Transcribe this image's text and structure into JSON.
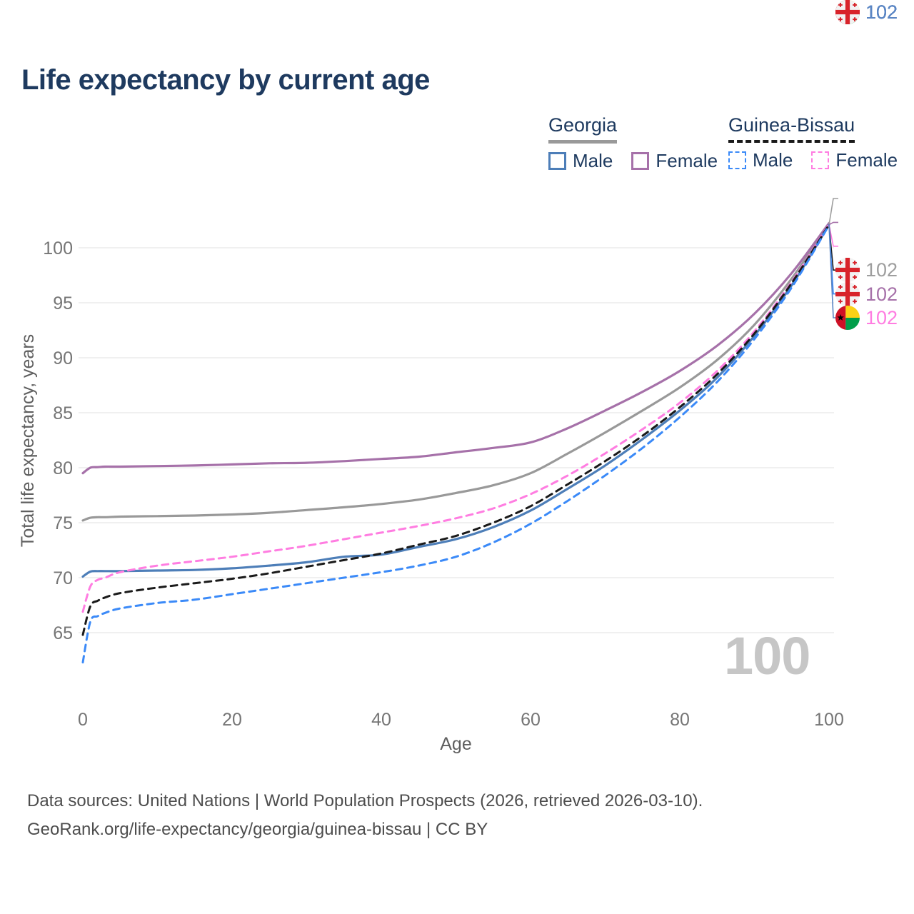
{
  "title": "Life expectancy by current age",
  "legend": {
    "georgia": {
      "label": "Georgia",
      "line_color": "#999999",
      "male_label": "Male",
      "female_label": "Female"
    },
    "guinea_bissau": {
      "label": "Guinea-Bissau",
      "line_color": "#1a1a1a",
      "male_label": "Male",
      "female_label": "Female"
    }
  },
  "chart_data": {
    "type": "line",
    "title": "Life expectancy by current age",
    "xlabel": "Age",
    "ylabel": "Total life expectancy, years",
    "xticks": [
      0,
      20,
      40,
      60,
      80,
      100
    ],
    "yticks": [
      65,
      70,
      75,
      80,
      85,
      90,
      95,
      100
    ],
    "xlim": [
      0,
      100
    ],
    "ylim": [
      61,
      103
    ],
    "grid": "horizontal",
    "x": [
      0,
      1,
      2,
      3,
      5,
      10,
      15,
      20,
      25,
      30,
      35,
      40,
      45,
      50,
      55,
      60,
      65,
      70,
      75,
      80,
      85,
      90,
      95,
      100
    ],
    "series": [
      {
        "name": "Georgia Both sexes",
        "country": "Georgia",
        "sex": "Both",
        "style": "solid",
        "color": "#999999",
        "values": [
          75.2,
          75.45,
          75.5,
          75.5,
          75.55,
          75.6,
          75.65,
          75.75,
          75.9,
          76.15,
          76.4,
          76.7,
          77.1,
          77.7,
          78.4,
          79.5,
          81.3,
          83.2,
          85.2,
          87.3,
          89.8,
          93.0,
          97.2,
          102.2
        ]
      },
      {
        "name": "Georgia Female",
        "country": "Georgia",
        "sex": "Female",
        "style": "solid",
        "color": "#a671a9",
        "values": [
          79.5,
          80.0,
          80.05,
          80.1,
          80.1,
          80.15,
          80.2,
          80.3,
          80.4,
          80.45,
          80.6,
          80.8,
          81.0,
          81.4,
          81.8,
          82.3,
          83.6,
          85.2,
          86.9,
          88.8,
          91.1,
          94.0,
          97.7,
          102.25
        ]
      },
      {
        "name": "Georgia Male",
        "country": "Georgia",
        "sex": "Male",
        "style": "solid",
        "color": "#4d7eb8",
        "values": [
          70.1,
          70.55,
          70.6,
          70.6,
          70.6,
          70.65,
          70.7,
          70.85,
          71.1,
          71.4,
          71.9,
          72.1,
          72.8,
          73.5,
          74.6,
          76.1,
          78.1,
          80.2,
          82.6,
          85.2,
          88.2,
          92.0,
          96.6,
          102.1
        ]
      },
      {
        "name": "Guinea-Bissau Female",
        "country": "Guinea-Bissau",
        "sex": "Female",
        "style": "dashed",
        "color": "#ff7de1",
        "values": [
          66.9,
          69.2,
          69.8,
          70.0,
          70.5,
          71.1,
          71.5,
          71.9,
          72.4,
          72.9,
          73.5,
          74.1,
          74.7,
          75.4,
          76.3,
          77.6,
          79.3,
          81.3,
          83.5,
          85.9,
          88.8,
          92.4,
          96.9,
          102.15
        ]
      },
      {
        "name": "Guinea-Bissau Both sexes",
        "country": "Guinea-Bissau",
        "sex": "Both",
        "style": "dashed",
        "color": "#1a1a1a",
        "values": [
          64.8,
          67.4,
          67.9,
          68.2,
          68.6,
          69.1,
          69.5,
          69.9,
          70.4,
          71.0,
          71.6,
          72.2,
          73.0,
          73.8,
          75.0,
          76.5,
          78.5,
          80.6,
          82.9,
          85.5,
          88.5,
          92.2,
          96.8,
          102.1
        ]
      },
      {
        "name": "Guinea-Bissau Male",
        "country": "Guinea-Bissau",
        "sex": "Male",
        "style": "dashed",
        "color": "#3b8af8",
        "values": [
          62.3,
          66.0,
          66.5,
          66.8,
          67.2,
          67.7,
          68.0,
          68.5,
          69.0,
          69.5,
          70.0,
          70.5,
          71.1,
          71.9,
          73.2,
          74.9,
          77.0,
          79.3,
          81.8,
          84.6,
          87.8,
          91.7,
          96.4,
          102.05
        ]
      }
    ],
    "legend_position": "top-right",
    "end_value_labels": [
      102,
      102,
      102,
      102,
      102,
      102
    ]
  },
  "right_labels": [
    {
      "value": "102",
      "flag": "georgia",
      "color": "#9e9e9e"
    },
    {
      "value": "102",
      "flag": "georgia",
      "color": "#a671a9"
    },
    {
      "value": "102",
      "flag": "guinea-bissau",
      "color": "#ff7de1"
    },
    {
      "value": "102",
      "flag": "guinea-bissau",
      "color": "#1a1a1a"
    },
    {
      "value": "102",
      "flag": "guinea-bissau",
      "color": "#3b8af8"
    },
    {
      "value": "102",
      "flag": "georgia",
      "color": "#5b86c4"
    }
  ],
  "watermark": "100",
  "footer": {
    "line1": "Data sources: United Nations | World Population Prospects (2026, retrieved 2026-03-10).",
    "line2": "GeoRank.org/life-expectancy/georgia/guinea-bissau | CC BY"
  }
}
